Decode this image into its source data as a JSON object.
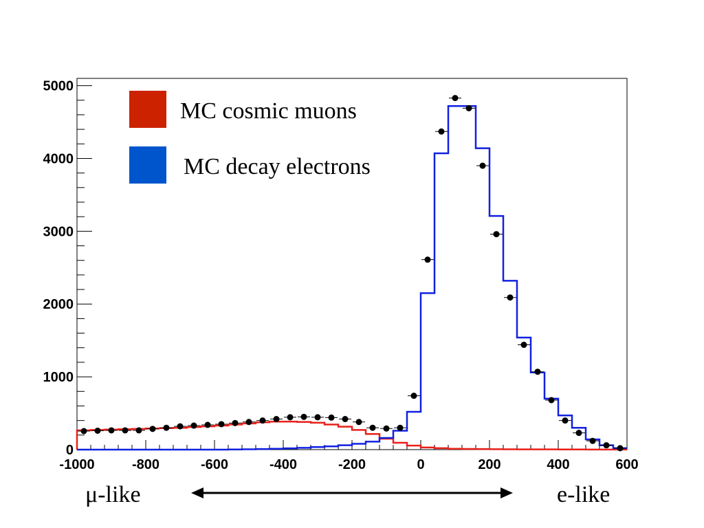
{
  "chart_data": {
    "type": "line",
    "title": "",
    "xlabel": "",
    "ylabel": "",
    "xlim": [
      -1000,
      600
    ],
    "ylim": [
      0,
      5100
    ],
    "x_ticks": [
      -1000,
      -800,
      -600,
      -400,
      -200,
      0,
      200,
      400,
      600
    ],
    "y_ticks": [
      0,
      1000,
      2000,
      3000,
      4000,
      5000
    ],
    "legend_position": "top-left",
    "colors": {
      "cosmic_muons": "#e8201a",
      "decay_electrons": "#1020e0",
      "data": "#000000",
      "legend_red": "#cc2200",
      "legend_blue": "#0055cc"
    },
    "bin_edges": [
      -1000,
      -960,
      -920,
      -880,
      -840,
      -800,
      -760,
      -720,
      -680,
      -640,
      -600,
      -560,
      -520,
      -480,
      -440,
      -400,
      -360,
      -320,
      -280,
      -240,
      -200,
      -160,
      -120,
      -80,
      -40,
      0,
      40,
      80,
      120,
      160,
      200,
      240,
      280,
      320,
      360,
      400,
      440,
      480,
      520,
      560,
      600
    ],
    "series": [
      {
        "name": "MC cosmic muons",
        "style": "step",
        "values": [
          265,
          270,
          275,
          280,
          285,
          290,
          295,
          300,
          310,
          320,
          330,
          345,
          360,
          375,
          385,
          385,
          380,
          370,
          345,
          315,
          270,
          215,
          150,
          95,
          55,
          30,
          20,
          12,
          10,
          8,
          6,
          5,
          4,
          3,
          3,
          2,
          2,
          1,
          1,
          1
        ]
      },
      {
        "name": "MC decay electrons",
        "style": "step",
        "values": [
          0,
          0,
          0,
          0,
          0,
          0,
          0,
          0,
          0,
          0,
          0,
          2,
          5,
          8,
          12,
          18,
          25,
          35,
          45,
          60,
          80,
          110,
          160,
          260,
          520,
          2150,
          4070,
          4720,
          4720,
          4140,
          3210,
          2320,
          1540,
          1060,
          700,
          470,
          300,
          140,
          60,
          20
        ]
      },
      {
        "name": "Data",
        "style": "points",
        "x": [
          -980,
          -940,
          -900,
          -860,
          -820,
          -780,
          -740,
          -700,
          -660,
          -620,
          -580,
          -540,
          -500,
          -460,
          -420,
          -380,
          -340,
          -300,
          -260,
          -220,
          -180,
          -140,
          -100,
          -60,
          -20,
          20,
          60,
          100,
          140,
          180,
          220,
          260,
          300,
          340,
          380,
          420,
          460,
          500,
          540,
          580
        ],
        "values": [
          255,
          260,
          265,
          265,
          265,
          285,
          300,
          320,
          330,
          340,
          350,
          365,
          380,
          400,
          420,
          445,
          450,
          445,
          440,
          420,
          380,
          300,
          290,
          300,
          740,
          2610,
          4370,
          4830,
          4690,
          3900,
          2960,
          2090,
          1440,
          1070,
          680,
          400,
          230,
          120,
          60,
          20
        ]
      }
    ],
    "legend": [
      {
        "label": "MC cosmic muons",
        "color": "#cc2200"
      },
      {
        "label": "MC decay electrons",
        "color": "#0055cc"
      }
    ],
    "annotations": {
      "left_label": "μ-like",
      "right_label": "e-like"
    }
  }
}
